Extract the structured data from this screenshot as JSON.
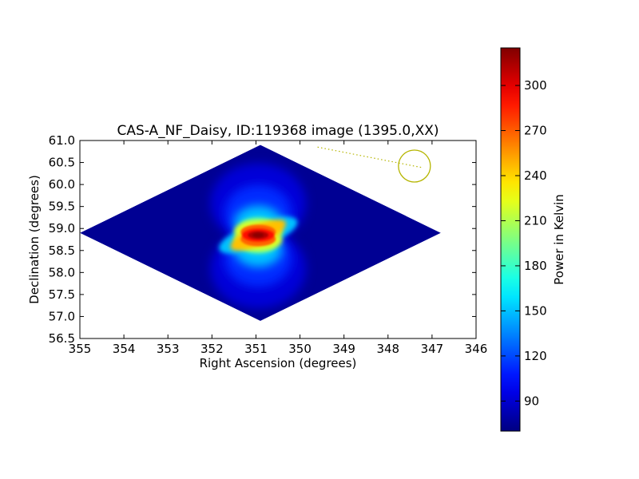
{
  "chart_data": {
    "type": "heatmap",
    "title": "CAS-A_NF_Daisy, ID:119368 image (1395.0,XX)",
    "xlabel": "Right Ascension (degrees)",
    "ylabel": "Declination (degrees)",
    "xlim": [
      355,
      346
    ],
    "ylim": [
      56.5,
      61.0
    ],
    "x_ticks": [
      355,
      354,
      353,
      352,
      351,
      350,
      349,
      348,
      347,
      346
    ],
    "x_tick_labels": [
      "355",
      "354",
      "353",
      "352",
      "351",
      "350",
      "349",
      "348",
      "347",
      "346"
    ],
    "y_ticks": [
      56.5,
      57.0,
      57.5,
      58.0,
      58.5,
      59.0,
      59.5,
      60.0,
      60.5,
      61.0
    ],
    "y_tick_labels": [
      "56.5",
      "57.0",
      "57.5",
      "58.0",
      "58.5",
      "59.0",
      "59.5",
      "60.0",
      "60.5",
      "61.0"
    ],
    "colorbar": {
      "label": "Power in Kelvin",
      "range": [
        70,
        325
      ],
      "colormap": "jet",
      "ticks": [
        90,
        120,
        150,
        180,
        210,
        240,
        270,
        300
      ],
      "tick_labels": [
        "90",
        "120",
        "150",
        "180",
        "210",
        "240",
        "270",
        "300"
      ]
    },
    "map": {
      "shape": "diamond",
      "outline_ra_dec": [
        [
          355.0,
          58.9
        ],
        [
          350.9,
          60.9
        ],
        [
          346.8,
          58.9
        ],
        [
          350.9,
          56.9
        ]
      ],
      "background_value": 75,
      "peak_value": 322,
      "peak_ra_dec": [
        350.95,
        58.85
      ]
    },
    "beam_circle": {
      "center_ra_dec": [
        347.4,
        60.42
      ],
      "color": "#b5b500"
    },
    "beam_line": {
      "from_ra_dec": [
        349.6,
        60.85
      ],
      "to_ra_dec": [
        347.2,
        60.38
      ],
      "color": "#b5b500",
      "style": "dotted"
    },
    "grid": false
  }
}
